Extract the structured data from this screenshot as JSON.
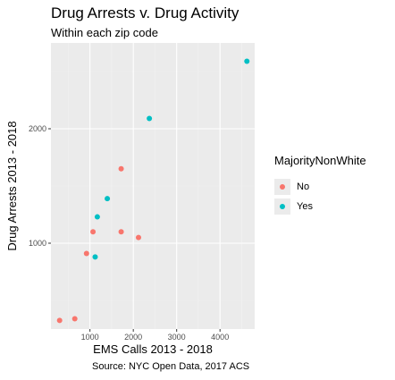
{
  "chart_data": {
    "type": "scatter",
    "title": "Drug Arrests v. Drug Activity",
    "subtitle": "Within each zip code",
    "caption": "Source: NYC Open Data, 2017 ACS",
    "xlabel": "EMS Calls 2013 - 2018",
    "ylabel": "Drug Arrests 2013 - 2018",
    "xlim": [
      100,
      4800
    ],
    "ylim": [
      250,
      2750
    ],
    "xticks": [
      1000,
      2000,
      3000,
      4000
    ],
    "yticks": [
      1000,
      2000
    ],
    "grid": true,
    "legend": {
      "title": "MajorityNonWhite",
      "position": "right"
    },
    "series": [
      {
        "name": "No",
        "color": "#F8766D",
        "points": [
          {
            "x": 300,
            "y": 325
          },
          {
            "x": 650,
            "y": 340
          },
          {
            "x": 920,
            "y": 910
          },
          {
            "x": 1070,
            "y": 1100
          },
          {
            "x": 1720,
            "y": 1100
          },
          {
            "x": 1720,
            "y": 1650
          },
          {
            "x": 2120,
            "y": 1050
          }
        ]
      },
      {
        "name": "Yes",
        "color": "#00BFC4",
        "points": [
          {
            "x": 1120,
            "y": 880
          },
          {
            "x": 1170,
            "y": 1230
          },
          {
            "x": 1400,
            "y": 1390
          },
          {
            "x": 2370,
            "y": 2090
          },
          {
            "x": 4620,
            "y": 2590
          }
        ]
      }
    ]
  }
}
